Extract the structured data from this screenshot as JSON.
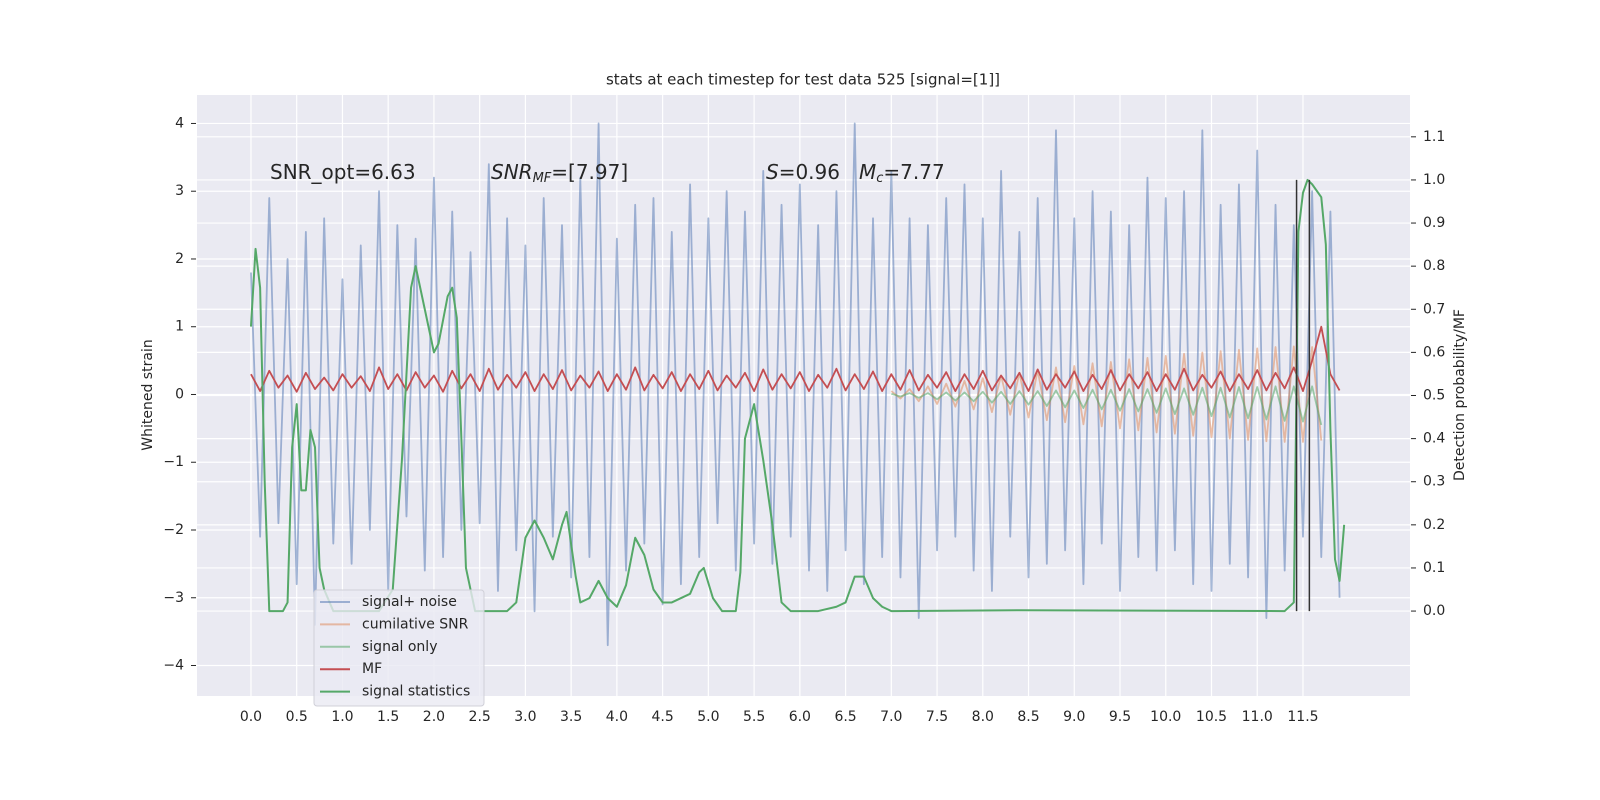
{
  "chart_data": {
    "type": "line",
    "title": "stats at each timestep for test data 525 [signal=[1]]",
    "y_label": "Whitened strain",
    "y2_label": "Detection probability/MF",
    "annotations": [
      [
        "SNR_opt=6.63"
      ],
      [
        "SNR",
        "MF",
        "=[7.97]"
      ],
      [
        "S",
        "=0.96"
      ],
      [
        "M",
        "c",
        "=7.77"
      ]
    ],
    "xlim": [
      -0.59,
      12.67
    ],
    "ylim": [
      -4.45,
      4.42
    ],
    "y2lim": [
      -0.197,
      1.197
    ],
    "xticks": [
      {
        "value": 0,
        "label": "0.0"
      },
      0.5,
      {
        "value": 1,
        "label": "1.0"
      },
      1.5,
      {
        "value": 2,
        "label": "2.0"
      },
      2.5,
      {
        "value": 3,
        "label": "3.0"
      },
      3.5,
      {
        "value": 4,
        "label": "4.0"
      },
      4.5,
      {
        "value": 5,
        "label": "5.0"
      },
      5.5,
      {
        "value": 6,
        "label": "6.0"
      },
      6.5,
      {
        "value": 7,
        "label": "7.0"
      },
      7.5,
      {
        "value": 8,
        "label": "8.0"
      },
      8.5,
      {
        "value": 9,
        "label": "9.0"
      },
      9.5,
      {
        "value": 10,
        "label": "10.0"
      },
      10.5,
      {
        "value": 11,
        "label": "11.0"
      },
      11.5
    ],
    "yticks": [
      {
        "value": -4,
        "label": "−4"
      },
      {
        "value": -3,
        "label": "−3"
      },
      {
        "value": -2,
        "label": "−2"
      },
      {
        "value": -1,
        "label": "−1"
      },
      0,
      1,
      2,
      3,
      4
    ],
    "y2ticks": [
      {
        "value": 0,
        "label": "0.0"
      },
      0.1,
      0.2,
      0.3,
      0.4,
      0.5,
      0.6,
      0.7,
      0.8,
      0.9,
      {
        "value": 1,
        "label": "1.0"
      },
      1.1
    ],
    "grid": true,
    "legend": "lower left",
    "vlines": [
      11.43,
      11.57
    ],
    "vline_color": "#333333",
    "series": [
      {
        "name": "signal+ noise",
        "color": "#4c72b0",
        "alpha": 0.5,
        "x": [
          0,
          0.1,
          0.2,
          0.3,
          0.4,
          0.5,
          0.6,
          0.7,
          0.8,
          0.9,
          1,
          1.1,
          1.2,
          1.3,
          1.4,
          1.5,
          1.6,
          1.7,
          1.8,
          1.9,
          2,
          2.1,
          2.2,
          2.3,
          2.4,
          2.5,
          2.6,
          2.7,
          2.8,
          2.9,
          3,
          3.1,
          3.2,
          3.3,
          3.4,
          3.5,
          3.6,
          3.7,
          3.8,
          3.9,
          4,
          4.1,
          4.2,
          4.3,
          4.4,
          4.5,
          4.6,
          4.7,
          4.8,
          4.9,
          5,
          5.1,
          5.2,
          5.3,
          5.4,
          5.5,
          5.6,
          5.7,
          5.8,
          5.9,
          6,
          6.1,
          6.2,
          6.3,
          6.4,
          6.5,
          6.6,
          6.7,
          6.8,
          6.9,
          7,
          7.1,
          7.2,
          7.3,
          7.4,
          7.5,
          7.6,
          7.7,
          7.8,
          7.9,
          8,
          8.1,
          8.2,
          8.3,
          8.4,
          8.5,
          8.6,
          8.7,
          8.8,
          8.9,
          9,
          9.1,
          9.2,
          9.3,
          9.4,
          9.5,
          9.6,
          9.7,
          9.8,
          9.9,
          10,
          10.1,
          10.2,
          10.3,
          10.4,
          10.5,
          10.6,
          10.7,
          10.8,
          10.9,
          11,
          11.1,
          11.2,
          11.3,
          11.4,
          11.5,
          11.6,
          11.7,
          11.8,
          11.9
        ],
        "values": [
          1.8,
          -2.1,
          2.9,
          -1.9,
          2.0,
          -2.8,
          2.4,
          -3.4,
          2.6,
          -2.2,
          1.7,
          -2.5,
          2.2,
          -2.0,
          3.0,
          -2.9,
          2.5,
          -1.8,
          2.3,
          -2.6,
          3.2,
          -2.4,
          2.7,
          -2.0,
          2.1,
          -1.9,
          3.4,
          -2.9,
          2.6,
          -2.3,
          2.2,
          -3.2,
          2.9,
          -2.1,
          2.5,
          -2.7,
          3.2,
          -2.4,
          4.0,
          -3.7,
          2.3,
          -2.6,
          2.8,
          -2.2,
          2.9,
          -3.1,
          2.4,
          -2.8,
          3.1,
          -2.4,
          2.6,
          -1.9,
          3.0,
          -2.6,
          2.7,
          -2.2,
          3.3,
          -2.5,
          2.8,
          -2.1,
          3.1,
          -2.6,
          2.5,
          -2.9,
          3.0,
          -2.3,
          4.0,
          -2.8,
          2.6,
          -2.4,
          3.3,
          -2.7,
          2.6,
          -3.3,
          2.5,
          -2.3,
          2.9,
          -2.1,
          3.1,
          -2.6,
          2.6,
          -2.9,
          3.3,
          -2.1,
          2.4,
          -2.7,
          2.9,
          -2.5,
          3.9,
          -2.3,
          2.6,
          -2.8,
          3.0,
          -2.2,
          2.7,
          -2.9,
          2.5,
          -2.4,
          3.2,
          -2.6,
          2.9,
          -2.3,
          3.0,
          -2.8,
          3.9,
          -2.9,
          2.8,
          -2.5,
          3.1,
          -2.7,
          3.6,
          -3.3,
          2.8,
          -2.6,
          2.5,
          -2.1,
          3.0,
          -2.4,
          2.7,
          -3.0
        ]
      },
      {
        "name": "cumilative SNR",
        "color": "#dd8452",
        "alpha": 0.5,
        "x": [
          7,
          7.1,
          7.2,
          7.3,
          7.4,
          7.5,
          7.6,
          7.7,
          7.8,
          7.9,
          8,
          8.1,
          8.2,
          8.3,
          8.4,
          8.5,
          8.6,
          8.7,
          8.8,
          8.9,
          9,
          9.1,
          9.2,
          9.3,
          9.4,
          9.5,
          9.6,
          9.7,
          9.8,
          9.9,
          10,
          10.1,
          10.2,
          10.3,
          10.4,
          10.5,
          10.6,
          10.7,
          10.8,
          10.9,
          11,
          11.1,
          11.2,
          11.3,
          11.4,
          11.5,
          11.6,
          11.7
        ],
        "values": [
          0.05,
          -0.06,
          0.08,
          -0.1,
          0.12,
          -0.14,
          0.16,
          -0.18,
          0.2,
          -0.22,
          0.24,
          -0.26,
          0.28,
          -0.3,
          0.32,
          -0.34,
          0.36,
          -0.38,
          0.4,
          -0.41,
          0.42,
          -0.44,
          0.46,
          -0.47,
          0.48,
          -0.5,
          0.52,
          -0.53,
          0.54,
          -0.56,
          0.57,
          -0.58,
          0.6,
          -0.61,
          0.62,
          -0.63,
          0.64,
          -0.65,
          0.66,
          -0.67,
          0.68,
          -0.69,
          0.7,
          -0.7,
          0.71,
          -0.7,
          0.7,
          -0.68
        ]
      },
      {
        "name": "signal only",
        "color": "#55a868",
        "alpha": 0.55,
        "x": [
          7,
          7.1,
          7.2,
          7.3,
          7.4,
          7.5,
          7.6,
          7.7,
          7.8,
          7.9,
          8,
          8.1,
          8.2,
          8.3,
          8.4,
          8.5,
          8.6,
          8.7,
          8.8,
          8.9,
          9,
          9.1,
          9.2,
          9.3,
          9.4,
          9.5,
          9.6,
          9.7,
          9.8,
          9.9,
          10,
          10.1,
          10.2,
          10.3,
          10.4,
          10.5,
          10.6,
          10.7,
          10.8,
          10.9,
          11,
          11.1,
          11.2,
          11.3,
          11.4,
          11.5,
          11.6,
          11.7
        ],
        "values": [
          0.01,
          -0.03,
          0.02,
          -0.05,
          0.02,
          -0.07,
          0.03,
          -0.09,
          0.03,
          -0.1,
          0.04,
          -0.12,
          0.04,
          -0.14,
          0.05,
          -0.15,
          0.05,
          -0.17,
          0.06,
          -0.19,
          0.06,
          -0.2,
          0.07,
          -0.22,
          0.07,
          -0.24,
          0.08,
          -0.25,
          0.08,
          -0.27,
          0.09,
          -0.29,
          0.09,
          -0.3,
          0.1,
          -0.32,
          0.1,
          -0.34,
          0.11,
          -0.35,
          0.11,
          -0.37,
          0.12,
          -0.39,
          0.12,
          -0.4,
          0.12,
          -0.45
        ]
      },
      {
        "name": "MF",
        "color": "#c44e52",
        "alpha": 1,
        "x": [
          0,
          0.1,
          0.2,
          0.3,
          0.4,
          0.5,
          0.6,
          0.7,
          0.8,
          0.9,
          1,
          1.1,
          1.2,
          1.3,
          1.4,
          1.5,
          1.6,
          1.7,
          1.8,
          1.9,
          2,
          2.1,
          2.2,
          2.3,
          2.4,
          2.5,
          2.6,
          2.7,
          2.8,
          2.9,
          3,
          3.1,
          3.2,
          3.3,
          3.4,
          3.5,
          3.6,
          3.7,
          3.8,
          3.9,
          4,
          4.1,
          4.2,
          4.3,
          4.4,
          4.5,
          4.6,
          4.7,
          4.8,
          4.9,
          5,
          5.1,
          5.2,
          5.3,
          5.4,
          5.5,
          5.6,
          5.7,
          5.8,
          5.9,
          6,
          6.1,
          6.2,
          6.3,
          6.4,
          6.5,
          6.6,
          6.7,
          6.8,
          6.9,
          7,
          7.1,
          7.2,
          7.3,
          7.4,
          7.5,
          7.6,
          7.7,
          7.8,
          7.9,
          8,
          8.1,
          8.2,
          8.3,
          8.4,
          8.5,
          8.6,
          8.7,
          8.8,
          8.9,
          9,
          9.1,
          9.2,
          9.3,
          9.4,
          9.5,
          9.6,
          9.7,
          9.8,
          9.9,
          10,
          10.1,
          10.2,
          10.3,
          10.4,
          10.5,
          10.6,
          10.7,
          10.8,
          10.9,
          11,
          11.1,
          11.2,
          11.3,
          11.4,
          11.5,
          11.6,
          11.7,
          11.8,
          11.9
        ],
        "values": [
          0.3,
          0.05,
          0.35,
          0.1,
          0.28,
          0.04,
          0.32,
          0.08,
          0.25,
          0.06,
          0.3,
          0.1,
          0.27,
          0.05,
          0.4,
          0.08,
          0.3,
          0.06,
          0.33,
          0.1,
          0.28,
          0.04,
          0.35,
          0.09,
          0.3,
          0.05,
          0.38,
          0.07,
          0.29,
          0.1,
          0.33,
          0.05,
          0.3,
          0.08,
          0.36,
          0.06,
          0.28,
          0.1,
          0.34,
          0.05,
          0.3,
          0.07,
          0.4,
          0.06,
          0.29,
          0.09,
          0.33,
          0.05,
          0.3,
          0.08,
          0.35,
          0.06,
          0.28,
          0.1,
          0.32,
          0.05,
          0.37,
          0.07,
          0.3,
          0.09,
          0.33,
          0.05,
          0.29,
          0.1,
          0.38,
          0.06,
          0.3,
          0.08,
          0.34,
          0.05,
          0.3,
          0.07,
          0.36,
          0.06,
          0.29,
          0.1,
          0.33,
          0.05,
          0.3,
          0.08,
          0.35,
          0.06,
          0.28,
          0.09,
          0.32,
          0.05,
          0.37,
          0.07,
          0.3,
          0.1,
          0.34,
          0.05,
          0.29,
          0.08,
          0.36,
          0.06,
          0.3,
          0.09,
          0.33,
          0.05,
          0.3,
          0.07,
          0.38,
          0.06,
          0.29,
          0.1,
          0.34,
          0.05,
          0.3,
          0.08,
          0.36,
          0.06,
          0.32,
          0.09,
          0.4,
          0.05,
          0.5,
          1.0,
          0.3,
          0.06
        ]
      },
      {
        "name": "signal statistics",
        "color": "#55a868",
        "alpha": 1,
        "axis": "y2",
        "x": [
          0,
          0.05,
          0.1,
          0.15,
          0.2,
          0.35,
          0.4,
          0.45,
          0.5,
          0.55,
          0.6,
          0.65,
          0.7,
          0.75,
          0.8,
          0.9,
          1.4,
          1.55,
          1.65,
          1.75,
          1.8,
          1.9,
          2,
          2.05,
          2.15,
          2.2,
          2.25,
          2.3,
          2.35,
          2.45,
          2.8,
          2.9,
          3,
          3.1,
          3.2,
          3.3,
          3.4,
          3.45,
          3.55,
          3.6,
          3.7,
          3.8,
          3.9,
          4,
          4.1,
          4.2,
          4.3,
          4.4,
          4.5,
          4.6,
          4.8,
          4.9,
          4.95,
          5.05,
          5.15,
          5.3,
          5.35,
          5.4,
          5.5,
          5.6,
          5.7,
          5.8,
          5.9,
          6.2,
          6.4,
          6.5,
          6.6,
          6.7,
          6.8,
          6.9,
          7,
          8.4,
          11.3,
          11.4,
          11.45,
          11.5,
          11.55,
          11.6,
          11.7,
          11.75,
          11.8,
          11.85,
          11.9,
          11.95
        ],
        "values": [
          0.66,
          0.84,
          0.75,
          0.3,
          0.0,
          0.0,
          0.02,
          0.38,
          0.48,
          0.28,
          0.28,
          0.42,
          0.38,
          0.1,
          0.05,
          0.0,
          0.0,
          0.05,
          0.35,
          0.75,
          0.8,
          0.7,
          0.6,
          0.62,
          0.73,
          0.75,
          0.68,
          0.4,
          0.1,
          0.0,
          0.0,
          0.02,
          0.17,
          0.21,
          0.17,
          0.12,
          0.2,
          0.23,
          0.08,
          0.02,
          0.03,
          0.07,
          0.03,
          0.01,
          0.06,
          0.17,
          0.13,
          0.05,
          0.02,
          0.02,
          0.04,
          0.09,
          0.1,
          0.03,
          0.0,
          0.0,
          0.09,
          0.4,
          0.48,
          0.35,
          0.2,
          0.02,
          0.0,
          0.0,
          0.01,
          0.02,
          0.08,
          0.08,
          0.03,
          0.01,
          0.0,
          0.002,
          0.0,
          0.02,
          0.88,
          0.97,
          1.0,
          0.99,
          0.96,
          0.85,
          0.42,
          0.12,
          0.07,
          0.2
        ]
      }
    ]
  }
}
